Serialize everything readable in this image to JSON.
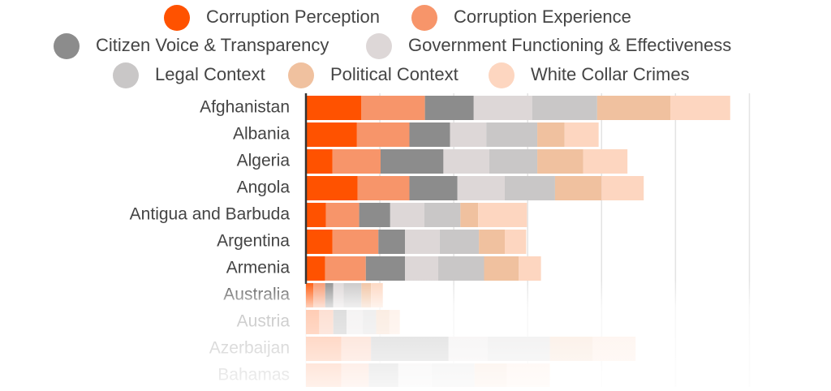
{
  "chart_data": {
    "type": "stacked-bar-horizontal",
    "categories": [
      "Afghanistan",
      "Albania",
      "Algeria",
      "Angola",
      "Antigua and Barbuda",
      "Argentina",
      "Armenia",
      "Australia",
      "Austria",
      "Azerbaijan",
      "Bahamas"
    ],
    "series": [
      {
        "name": "Corruption Perception",
        "color": "#ff5200",
        "values": [
          0.75,
          0.69,
          0.36,
          0.7,
          0.27,
          0.36,
          0.26,
          0.1,
          0.18,
          0.48,
          0.48
        ]
      },
      {
        "name": "Corruption Experience",
        "color": "#f7956a",
        "values": [
          0.86,
          0.71,
          0.65,
          0.7,
          0.45,
          0.62,
          0.55,
          0.16,
          0.19,
          0.4,
          0.37
        ]
      },
      {
        "name": "Citizen Voice & Transparency",
        "color": "#8c8c8c",
        "values": [
          0.66,
          0.55,
          0.85,
          0.65,
          0.42,
          0.36,
          0.53,
          0.11,
          0.18,
          1.05,
          0.4
        ]
      },
      {
        "name": "Government Functioning & Effectiveness",
        "color": "#ddd7d7",
        "values": [
          0.79,
          0.49,
          0.62,
          0.64,
          0.46,
          0.47,
          0.45,
          0.14,
          0.22,
          0.53,
          0.45
        ]
      },
      {
        "name": "Legal Context",
        "color": "#c9c7c7",
        "values": [
          0.88,
          0.69,
          0.65,
          0.68,
          0.49,
          0.53,
          0.62,
          0.24,
          0.18,
          0.84,
          0.58
        ]
      },
      {
        "name": "Political Context",
        "color": "#f0c19f",
        "values": [
          0.99,
          0.37,
          0.62,
          0.63,
          0.24,
          0.35,
          0.47,
          0.13,
          0.18,
          0.58,
          0.44
        ]
      },
      {
        "name": "White Collar Crimes",
        "color": "#fdd6c0",
        "values": [
          0.81,
          0.46,
          0.6,
          0.57,
          0.66,
          0.29,
          0.3,
          0.16,
          0.14,
          0.58,
          0.58
        ]
      }
    ],
    "xlim": [
      0,
      6.5
    ],
    "xticks": [
      0,
      1,
      2,
      3,
      4,
      5,
      6
    ],
    "grid": true
  }
}
